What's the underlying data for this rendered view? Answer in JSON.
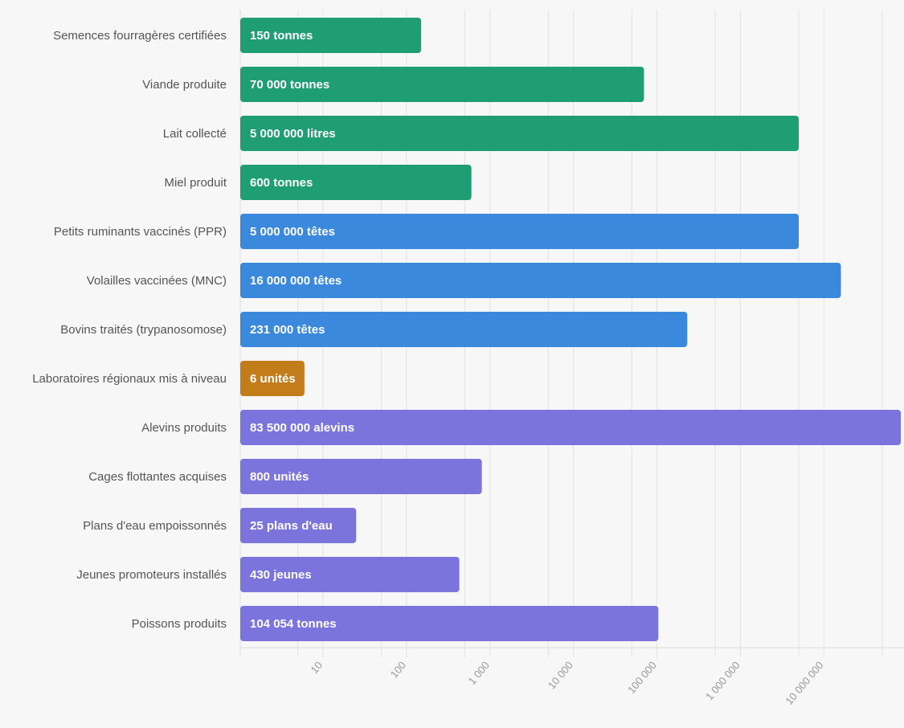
{
  "chart_data": {
    "type": "bar",
    "orientation": "horizontal",
    "title": "",
    "xlabel": "",
    "ylabel": "",
    "xscale": "log",
    "xlim": [
      1,
      83500000
    ],
    "grid": true,
    "legend": "none",
    "categories": [
      "Semences fourragères certifiées",
      "Viande produite",
      "Lait collecté",
      "Miel produit",
      "Petits ruminants vaccinés (PPR)",
      "Volailles vaccinées (MNC)",
      "Bovins traités (trypanosomose)",
      "Laboratoires régionaux mis à niveau",
      "Alevins produits",
      "Cages flottantes acquises",
      "Plans d'eau empoissonnés",
      "Jeunes promoteurs installés",
      "Poissons produits"
    ],
    "values": [
      150,
      70000,
      5000000,
      600,
      5000000,
      16000000,
      231000,
      6,
      83500000,
      800,
      25,
      430,
      104054
    ],
    "bar_labels": [
      "150 tonnes",
      "70 000 tonnes",
      "5 000 000 litres",
      "600 tonnes",
      "5 000 000 têtes",
      "16 000 000 têtes",
      "231 000 têtes",
      "6 unités",
      "83 500 000 alevins",
      "800 unités",
      "25 plans d'eau",
      "430 jeunes",
      "104 054 tonnes"
    ],
    "groups": [
      "production",
      "production",
      "production",
      "production",
      "sante",
      "sante",
      "sante",
      "laboratoire",
      "peche",
      "peche",
      "peche",
      "peche",
      "peche"
    ],
    "group_colors": {
      "production": "#1f9e74",
      "sante": "#3a89dc",
      "laboratoire": "#c37c1a",
      "peche": "#7b74dc"
    },
    "x_ticks": [
      10,
      100,
      1000,
      10000,
      100000,
      1000000,
      10000000
    ],
    "x_tick_labels": [
      "10",
      "100",
      "1 000",
      "10 000",
      "100 000",
      "1 000 000",
      "10 000 000"
    ],
    "x_minor_gridlines": [
      5,
      50,
      500,
      5000,
      50000,
      500000,
      5000000,
      50000000
    ]
  }
}
